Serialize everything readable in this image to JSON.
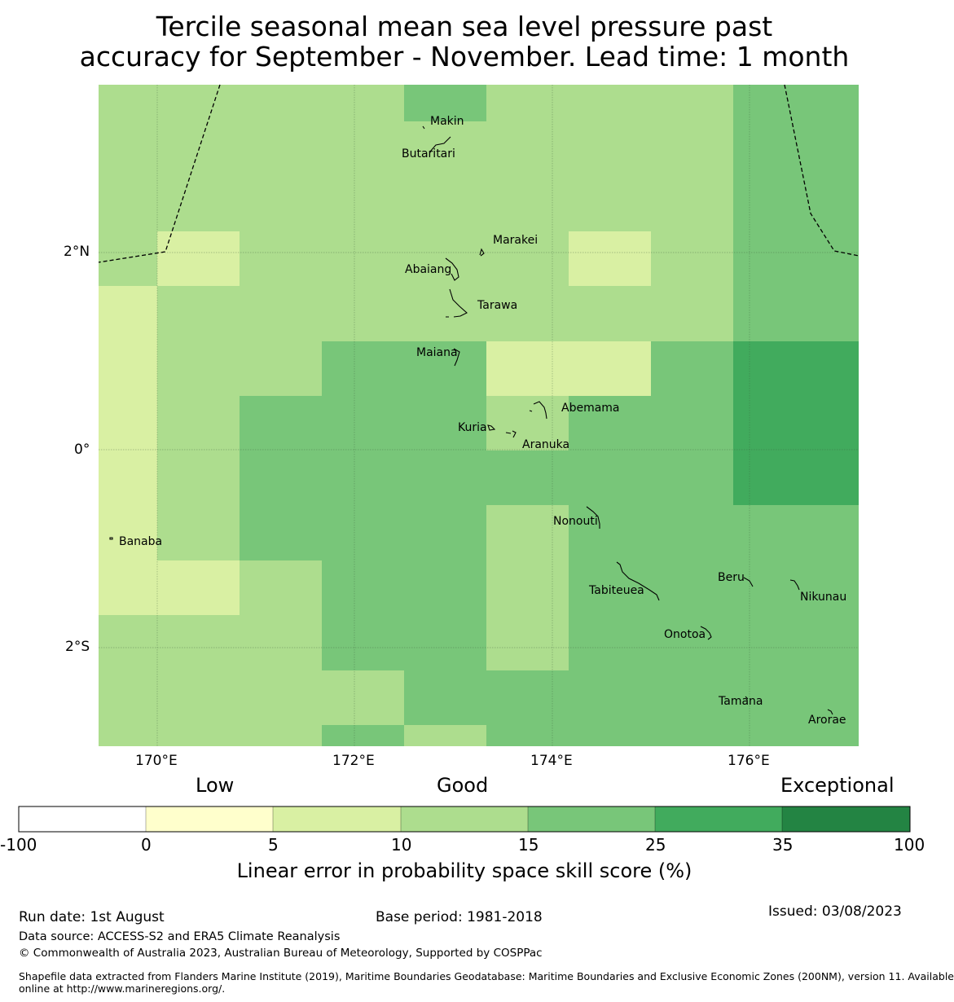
{
  "title": {
    "line1": "Tercile seasonal mean sea level pressure past",
    "line2": "accuracy for September - November. Lead time: 1 month"
  },
  "map": {
    "x_ticks": [
      "170°E",
      "172°E",
      "174°E",
      "176°E"
    ],
    "y_ticks": [
      "2°N",
      "0°",
      "2°S"
    ],
    "lon_range": [
      169.4,
      177.1
    ],
    "lat_range": [
      -3.0,
      3.7
    ],
    "grid": true,
    "islands": [
      {
        "name": "Makin",
        "lon": 173.0,
        "lat": 3.35
      },
      {
        "name": "Butaritari",
        "lon": 172.78,
        "lat": 3.07
      },
      {
        "name": "Marakei",
        "lon": 173.4,
        "lat": 2.02
      },
      {
        "name": "Abaiang",
        "lon": 172.9,
        "lat": 1.83
      },
      {
        "name": "Tarawa",
        "lon": 173.07,
        "lat": 1.43
      },
      {
        "name": "Maiana",
        "lon": 173.0,
        "lat": 0.92
      },
      {
        "name": "Abemama",
        "lon": 173.9,
        "lat": 0.43
      },
      {
        "name": "Kuria",
        "lon": 173.4,
        "lat": 0.23
      },
      {
        "name": "Aranuka",
        "lon": 173.6,
        "lat": 0.18
      },
      {
        "name": "Banaba",
        "lon": 169.53,
        "lat": -0.87
      },
      {
        "name": "Nonouti",
        "lon": 174.43,
        "lat": -0.67
      },
      {
        "name": "Tabiteuea",
        "lon": 174.9,
        "lat": -1.3
      },
      {
        "name": "Beru",
        "lon": 176.0,
        "lat": -1.33
      },
      {
        "name": "Nikunau",
        "lon": 176.45,
        "lat": -1.37
      },
      {
        "name": "Onotoa",
        "lon": 175.55,
        "lat": -1.8
      },
      {
        "name": "Tamana",
        "lon": 175.98,
        "lat": -2.5
      },
      {
        "name": "Arorae",
        "lon": 176.82,
        "lat": -2.65
      }
    ]
  },
  "colorbar": {
    "categories": [
      "Low",
      "Good",
      "Exceptional"
    ],
    "bounds": [
      "-100",
      "0",
      "5",
      "10",
      "15",
      "25",
      "35",
      "100"
    ],
    "colors": [
      "#ffffff",
      "#ffffcc",
      "#d9f0a3",
      "#addd8e",
      "#78c679",
      "#41ab5d",
      "#238443"
    ],
    "label": "Linear error in probability space skill score (%)"
  },
  "footer": {
    "run_date": "Run date: 1st August",
    "base_period": "Base period: 1981-2018",
    "issued": "Issued: 03/08/2023",
    "data_source": "Data source: ACCESS-S2 and ERA5 Climate Reanalysis",
    "copyright": "© Commonwealth of Australia 2023, Australian Bureau of Meteorology, Supported by COSPPac",
    "shapefile_line1": "Shapefile data extracted from Flanders Marine Institute (2019), Maritime Boundaries Geodatabase: Maritime Boundaries and Exclusive Economic Zones (200NM), version 11. Available",
    "shapefile_line2": "online at http://www.marineregions.org/."
  }
}
